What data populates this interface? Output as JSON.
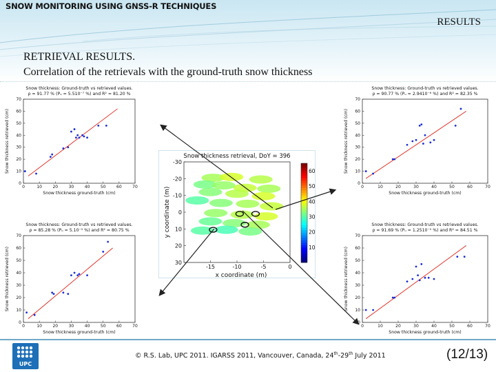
{
  "header": {
    "top_title": "SNOW MONITORING USING GNSS-R TECHNIQUES",
    "section_label": "RESULTS",
    "heading_line1": "RETRIEVAL RESULTS.",
    "heading_line2": "Correlation of the retrievals with the ground-truth snow thickness"
  },
  "footer": {
    "credit_prefix": "© R.S. Lab, UPC 2011. IGARSS 2011, Vancouver, Canada, 24",
    "sup1": "th",
    "credit_mid": "-29",
    "sup2": "th",
    "credit_suffix": " July 2011",
    "page": "(12/13)",
    "logo_text": "UPC"
  },
  "chart_data": [
    {
      "type": "scatter",
      "title_line1": "Snow thickness: Ground-truth vs retrieved values.",
      "title_line2": "ρ = 91.77 % (Pᵤ = 5.510⁻⁷ %) and R² = 81.20 %",
      "xlabel": "Snow thickness ground-truth (cm)",
      "ylabel": "Snow thickness retrieved (cm)",
      "xlim": [
        0,
        70
      ],
      "ylim": [
        0,
        70
      ],
      "xticks": [
        "0",
        "10",
        "20",
        "30",
        "40",
        "50",
        "60",
        "70"
      ],
      "yticks": [
        "0",
        "10",
        "20",
        "30",
        "40",
        "50",
        "60",
        "70"
      ],
      "x": [
        1,
        8,
        17,
        18,
        25,
        28,
        30,
        32,
        33,
        34,
        35,
        37,
        38,
        40,
        47,
        52
      ],
      "y": [
        10,
        8,
        22,
        24,
        29,
        30,
        43,
        45,
        38,
        40,
        38,
        40,
        39,
        38,
        48,
        48
      ],
      "fit": [
        [
          3,
          6
        ],
        [
          59,
          62
        ]
      ]
    },
    {
      "type": "scatter",
      "title_line1": "Snow thickness: Ground-truth vs retrieved values.",
      "title_line2": "ρ = 90.77 % (Pᵤ = 2.9410⁻⁶ %) and R² = 82.35 %",
      "xlabel": "Snow thickness ground-truth (cm)",
      "ylabel": "Snow thickness retrieved (cm)",
      "xlim": [
        0,
        70
      ],
      "ylim": [
        0,
        70
      ],
      "xticks": [
        "0",
        "10",
        "20",
        "30",
        "40",
        "50",
        "60",
        "70"
      ],
      "yticks": [
        "0",
        "10",
        "20",
        "30",
        "40",
        "50",
        "60",
        "70"
      ],
      "x": [
        2,
        6,
        17,
        18,
        25,
        28,
        30,
        32,
        33,
        34,
        35,
        38,
        40,
        52,
        55
      ],
      "y": [
        10,
        8,
        20,
        20,
        32,
        35,
        36,
        48,
        49,
        33,
        40,
        34,
        36,
        48,
        62
      ],
      "fit": [
        [
          2,
          4
        ],
        [
          58,
          60
        ]
      ]
    },
    {
      "type": "scatter",
      "title_line1": "Snow thickness: Ground-truth vs retrieved values.",
      "title_line2": "ρ = 85.28 % (Pᵤ = 5.10⁻⁵ %) and R² = 80.75 %",
      "xlabel": "Snow thickness ground-truth (cm)",
      "ylabel": "Snow thickness retrieved (cm)",
      "xlim": [
        0,
        70
      ],
      "ylim": [
        0,
        70
      ],
      "xticks": [
        "0",
        "10",
        "20",
        "30",
        "40",
        "50",
        "60",
        "70"
      ],
      "yticks": [
        "0",
        "10",
        "20",
        "30",
        "40",
        "50",
        "60",
        "70"
      ],
      "x": [
        2,
        7,
        18,
        19,
        25,
        28,
        30,
        32,
        34,
        35,
        40,
        50,
        53
      ],
      "y": [
        8,
        6,
        24,
        23,
        24,
        23,
        38,
        40,
        38,
        39,
        38,
        57,
        65
      ],
      "fit": [
        [
          3,
          3
        ],
        [
          56,
          60
        ]
      ]
    },
    {
      "type": "scatter",
      "title_line1": "Snow thickness: Ground-truth vs retrieved values.",
      "title_line2": "ρ = 91.69 % (Pᵤ = 1.2510⁻⁵ %) and R² = 84.51 %",
      "xlabel": "Snow thickness ground-truth (cm)",
      "ylabel": "Snow thickness retrieved (cm)",
      "xlim": [
        0,
        70
      ],
      "ylim": [
        0,
        70
      ],
      "xticks": [
        "0",
        "10",
        "20",
        "30",
        "40",
        "50",
        "60",
        "70"
      ],
      "yticks": [
        "0",
        "10",
        "20",
        "30",
        "40",
        "50",
        "60",
        "70"
      ],
      "x": [
        2,
        6,
        17,
        18,
        25,
        28,
        30,
        31,
        32,
        33,
        35,
        37,
        40,
        53,
        57
      ],
      "y": [
        10,
        10,
        20,
        20,
        33,
        35,
        45,
        38,
        34,
        47,
        36,
        36,
        35,
        53,
        53
      ],
      "fit": [
        [
          2,
          3
        ],
        [
          58,
          62
        ]
      ]
    },
    {
      "type": "heatmap",
      "title": "Snow thickness retrieval, DoY = 396",
      "xlabel": "x coordinate (m)",
      "ylabel": "y coordinate (m)",
      "xlim": [
        -20,
        0
      ],
      "ylim": [
        30,
        -30
      ],
      "xticks": [
        "-15",
        "-10",
        "-5",
        "0"
      ],
      "yticks": [
        "-30",
        "-20",
        "-10",
        "0",
        "10",
        "20",
        "30"
      ],
      "colorbar_ticks": [
        "60",
        "50",
        "40",
        "30",
        "20",
        "10"
      ],
      "colorbar_range": [
        0,
        65
      ],
      "blobs": [
        {
          "x": -14.5,
          "y": -20.5,
          "v": 35
        },
        {
          "x": -11.0,
          "y": -21.0,
          "v": 38
        },
        {
          "x": -5.5,
          "y": -19.5,
          "v": 36
        },
        {
          "x": -16.0,
          "y": -16.5,
          "v": 32
        },
        {
          "x": -12.5,
          "y": -16.0,
          "v": 34
        },
        {
          "x": -8.5,
          "y": -14.5,
          "v": 37
        },
        {
          "x": -4.0,
          "y": -14.0,
          "v": 35
        },
        {
          "x": -15.0,
          "y": -12.0,
          "v": 33
        },
        {
          "x": -10.0,
          "y": -11.0,
          "v": 36
        },
        {
          "x": -5.0,
          "y": -9.5,
          "v": 38
        },
        {
          "x": -17.5,
          "y": -7.0,
          "v": 30
        },
        {
          "x": -13.0,
          "y": -5.5,
          "v": 33
        },
        {
          "x": -8.0,
          "y": -5.0,
          "v": 35
        },
        {
          "x": -3.5,
          "y": -3.5,
          "v": 37
        },
        {
          "x": -14.0,
          "y": 0.5,
          "v": 34
        },
        {
          "x": -9.0,
          "y": 1.5,
          "v": 36
        },
        {
          "x": -4.5,
          "y": 2.5,
          "v": 38
        },
        {
          "x": -15.0,
          "y": 5.5,
          "v": 31
        },
        {
          "x": -10.5,
          "y": 6.5,
          "v": 33
        },
        {
          "x": -6.0,
          "y": 7.5,
          "v": 35
        },
        {
          "x": -12.0,
          "y": 10.5,
          "v": 29
        },
        {
          "x": -7.5,
          "y": 11.5,
          "v": 32
        },
        {
          "x": -16.5,
          "y": 11.0,
          "v": 30
        }
      ],
      "markers": [
        {
          "x": -14.5,
          "y": 10.5
        },
        {
          "x": -9.5,
          "y": 1.0
        },
        {
          "x": -6.5,
          "y": 1.0
        },
        {
          "x": -8.5,
          "y": 7.5
        }
      ]
    }
  ],
  "colors": {
    "accent": "#2f7fb0",
    "point": "#1a2bd6",
    "fit": "#e2231a",
    "marker": "#1a8a1a"
  }
}
